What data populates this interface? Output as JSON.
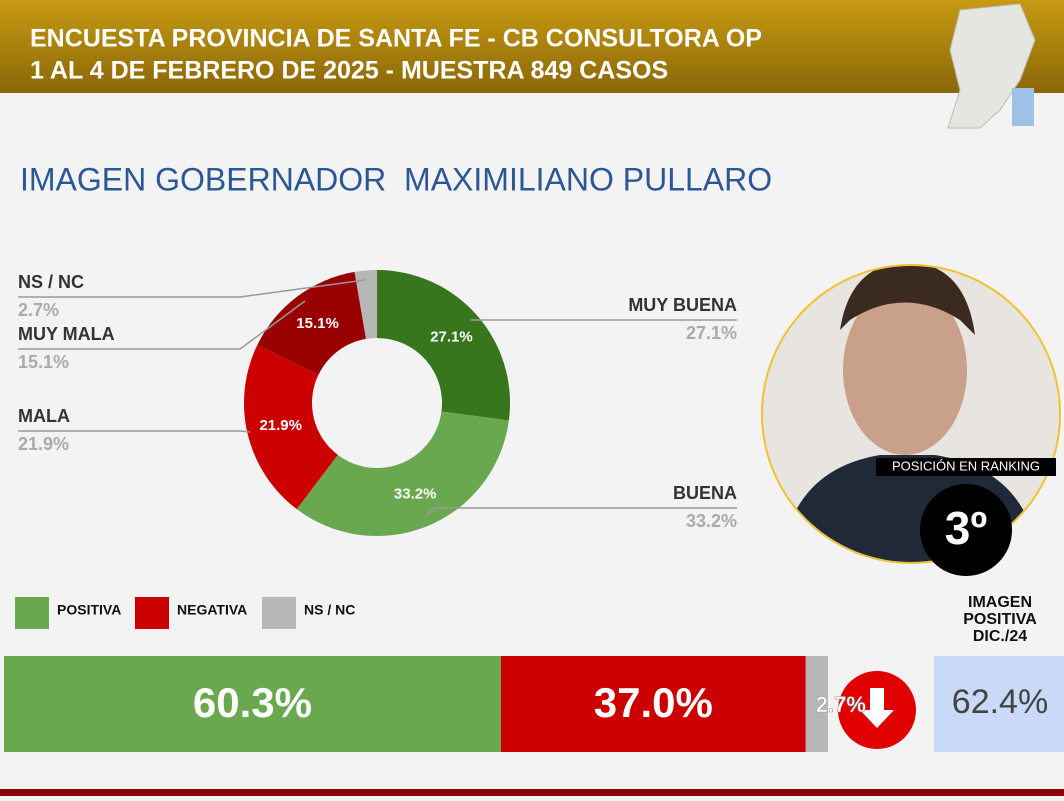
{
  "header": {
    "line1": "ENCUESTA PROVINCIA DE SANTA FE - CB CONSULTORA OP",
    "line2": "1 AL 4 DE FEBRERO DE 2025 - MUESTRA 849 CASOS"
  },
  "title": "IMAGEN GOBERNADOR  MAXIMILIANO PULLARO",
  "chart_data": [
    {
      "type": "donut",
      "categories": [
        "MUY BUENA",
        "BUENA",
        "MALA",
        "MUY MALA",
        "NS / NC"
      ],
      "values": [
        27.1,
        33.2,
        21.9,
        15.1,
        2.7
      ],
      "value_labels": [
        "27.1%",
        "33.2%",
        "21.9%",
        "15.1%",
        "2.7%"
      ],
      "colors": [
        "#38761d",
        "#6aa84f",
        "#cc0000",
        "#990000",
        "#b7b7b7"
      ]
    },
    {
      "type": "stacked-bar",
      "xlim": [
        0,
        100
      ],
      "series": [
        {
          "name": "POSITIVA",
          "color": "#6aa84f",
          "values": [
            60.3
          ],
          "value_labels": [
            "60.3%"
          ]
        },
        {
          "name": "NEGATIVA",
          "color": "#cc0000",
          "values": [
            37.0
          ],
          "value_labels": [
            "37.0%"
          ]
        },
        {
          "name": "NS / NC",
          "color": "#b7b7b7",
          "values": [
            2.7
          ],
          "value_labels": [
            "2.7%"
          ]
        }
      ]
    }
  ],
  "ranking": {
    "label": "POSICIÓN EN RANKING",
    "position": "3º"
  },
  "previous": {
    "label_lines": [
      "IMAGEN",
      "POSITIVA",
      "DIC./24"
    ],
    "value": "62.4%"
  }
}
